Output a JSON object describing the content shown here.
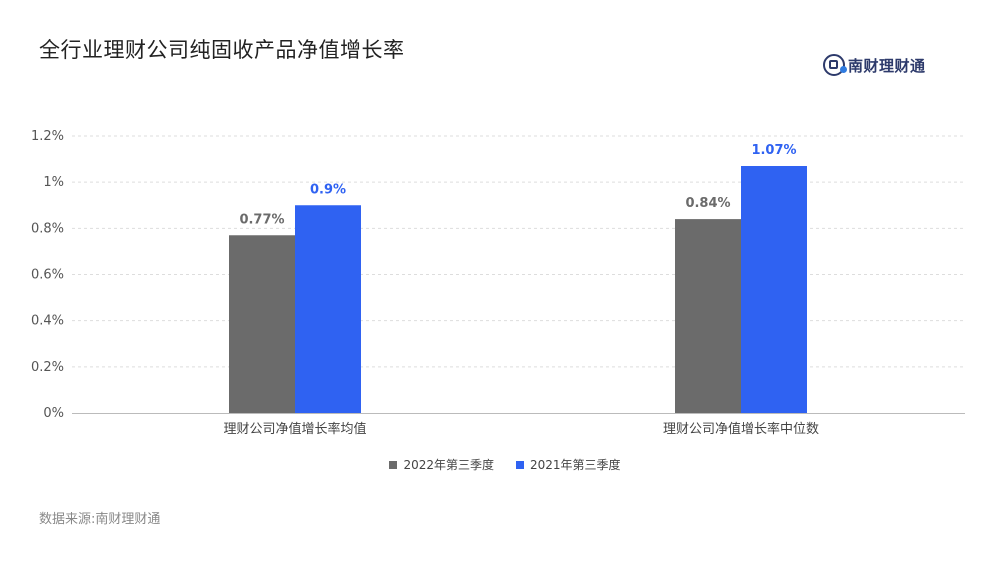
{
  "title": "全行业理财公司纯固收产品净值增长率",
  "logo": {
    "text": "南财理财通",
    "icon": "nancai-logo-icon"
  },
  "source": "数据来源:南财理财通",
  "colors": {
    "series_2022": "#6b6b6b",
    "series_2021": "#2f62f2",
    "label_2022": "#6b6b6b",
    "label_2021": "#2f62f2",
    "grid": "#dddddd",
    "axis_text": "#555555"
  },
  "chart_data": {
    "type": "bar",
    "categories": [
      "理财公司净值增长率均值",
      "理财公司净值增长率中位数"
    ],
    "series": [
      {
        "name": "2022年第三季度",
        "values": [
          0.77,
          0.84
        ],
        "labels": [
          "0.77%",
          "0.84%"
        ]
      },
      {
        "name": "2021年第三季度",
        "values": [
          0.9,
          1.07
        ],
        "labels": [
          "0.9%",
          "1.07%"
        ]
      }
    ],
    "ylim": [
      0,
      1.2
    ],
    "yticks": [
      0,
      0.2,
      0.4,
      0.6,
      0.8,
      1,
      1.2
    ],
    "ytick_labels": [
      "0%",
      "0.2%",
      "0.4%",
      "0.6%",
      "0.8%",
      "1%",
      "1.2%"
    ],
    "grid": true,
    "legend": "bottom-center"
  }
}
